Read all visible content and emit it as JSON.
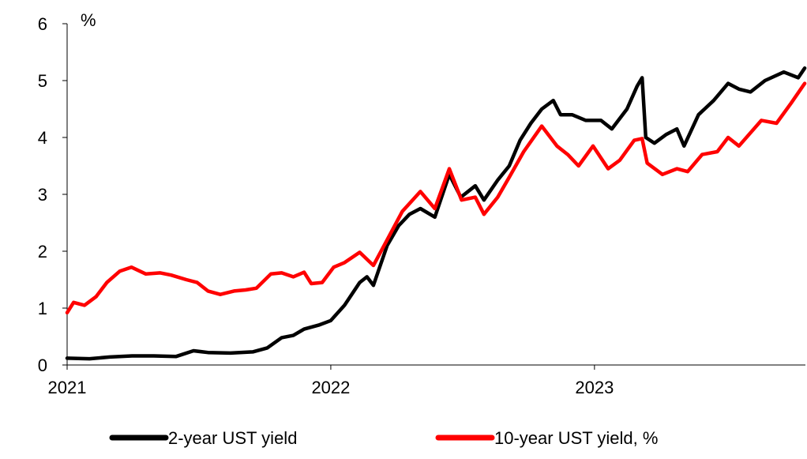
{
  "chart_data": {
    "type": "line",
    "title": "",
    "ylabel": "%",
    "xlabel": "",
    "ylim": [
      0,
      6
    ],
    "yticks": [
      "0",
      "1",
      "2",
      "3",
      "4",
      "5",
      "6"
    ],
    "xlim": [
      "2021-01-01",
      "2023-10-20"
    ],
    "xticks": [
      "2021",
      "2022",
      "2023"
    ],
    "grid": false,
    "legend": "bottom",
    "series": [
      {
        "name": "2-year UST yield",
        "color": "#000000",
        "points": [
          [
            "2021-01-01",
            0.12
          ],
          [
            "2021-02-01",
            0.11
          ],
          [
            "2021-03-01",
            0.14
          ],
          [
            "2021-04-01",
            0.16
          ],
          [
            "2021-05-01",
            0.16
          ],
          [
            "2021-06-01",
            0.15
          ],
          [
            "2021-06-25",
            0.25
          ],
          [
            "2021-07-15",
            0.22
          ],
          [
            "2021-08-15",
            0.21
          ],
          [
            "2021-09-15",
            0.23
          ],
          [
            "2021-10-05",
            0.3
          ],
          [
            "2021-10-25",
            0.48
          ],
          [
            "2021-11-10",
            0.52
          ],
          [
            "2021-11-25",
            0.63
          ],
          [
            "2021-12-15",
            0.7
          ],
          [
            "2022-01-01",
            0.78
          ],
          [
            "2022-01-20",
            1.05
          ],
          [
            "2022-02-10",
            1.45
          ],
          [
            "2022-02-20",
            1.55
          ],
          [
            "2022-03-01",
            1.4
          ],
          [
            "2022-03-20",
            2.1
          ],
          [
            "2022-04-05",
            2.45
          ],
          [
            "2022-04-20",
            2.65
          ],
          [
            "2022-05-05",
            2.75
          ],
          [
            "2022-05-25",
            2.6
          ],
          [
            "2022-06-14",
            3.35
          ],
          [
            "2022-06-30",
            2.95
          ],
          [
            "2022-07-20",
            3.15
          ],
          [
            "2022-08-01",
            2.9
          ],
          [
            "2022-08-20",
            3.25
          ],
          [
            "2022-09-05",
            3.5
          ],
          [
            "2022-09-20",
            3.95
          ],
          [
            "2022-10-05",
            4.25
          ],
          [
            "2022-10-20",
            4.5
          ],
          [
            "2022-11-05",
            4.65
          ],
          [
            "2022-11-15",
            4.4
          ],
          [
            "2022-12-01",
            4.4
          ],
          [
            "2022-12-20",
            4.3
          ],
          [
            "2023-01-10",
            4.3
          ],
          [
            "2023-01-25",
            4.15
          ],
          [
            "2023-02-15",
            4.5
          ],
          [
            "2023-03-01",
            4.9
          ],
          [
            "2023-03-08",
            5.05
          ],
          [
            "2023-03-13",
            4.0
          ],
          [
            "2023-03-25",
            3.9
          ],
          [
            "2023-04-10",
            4.05
          ],
          [
            "2023-04-25",
            4.15
          ],
          [
            "2023-05-05",
            3.85
          ],
          [
            "2023-05-25",
            4.4
          ],
          [
            "2023-06-15",
            4.65
          ],
          [
            "2023-07-05",
            4.95
          ],
          [
            "2023-07-20",
            4.85
          ],
          [
            "2023-08-05",
            4.8
          ],
          [
            "2023-08-25",
            5.0
          ],
          [
            "2023-09-20",
            5.15
          ],
          [
            "2023-10-10",
            5.05
          ],
          [
            "2023-10-19",
            5.22
          ]
        ]
      },
      {
        "name": "10-year UST yield, %",
        "color": "#ff0000",
        "points": [
          [
            "2021-01-01",
            0.92
          ],
          [
            "2021-01-10",
            1.1
          ],
          [
            "2021-01-25",
            1.05
          ],
          [
            "2021-02-10",
            1.2
          ],
          [
            "2021-02-25",
            1.45
          ],
          [
            "2021-03-15",
            1.65
          ],
          [
            "2021-03-31",
            1.72
          ],
          [
            "2021-04-20",
            1.6
          ],
          [
            "2021-05-10",
            1.62
          ],
          [
            "2021-05-25",
            1.58
          ],
          [
            "2021-06-15",
            1.5
          ],
          [
            "2021-06-30",
            1.45
          ],
          [
            "2021-07-15",
            1.3
          ],
          [
            "2021-08-01",
            1.24
          ],
          [
            "2021-08-20",
            1.3
          ],
          [
            "2021-09-05",
            1.32
          ],
          [
            "2021-09-20",
            1.35
          ],
          [
            "2021-10-10",
            1.6
          ],
          [
            "2021-10-25",
            1.62
          ],
          [
            "2021-11-10",
            1.55
          ],
          [
            "2021-11-25",
            1.63
          ],
          [
            "2021-12-05",
            1.43
          ],
          [
            "2021-12-20",
            1.45
          ],
          [
            "2022-01-05",
            1.72
          ],
          [
            "2022-01-20",
            1.8
          ],
          [
            "2022-02-10",
            1.98
          ],
          [
            "2022-03-01",
            1.75
          ],
          [
            "2022-03-20",
            2.2
          ],
          [
            "2022-04-10",
            2.7
          ],
          [
            "2022-05-05",
            3.05
          ],
          [
            "2022-05-25",
            2.75
          ],
          [
            "2022-06-14",
            3.45
          ],
          [
            "2022-07-01",
            2.9
          ],
          [
            "2022-07-20",
            2.95
          ],
          [
            "2022-08-01",
            2.65
          ],
          [
            "2022-08-20",
            2.95
          ],
          [
            "2022-09-05",
            3.3
          ],
          [
            "2022-09-25",
            3.75
          ],
          [
            "2022-10-20",
            4.2
          ],
          [
            "2022-11-10",
            3.85
          ],
          [
            "2022-11-25",
            3.7
          ],
          [
            "2022-12-10",
            3.5
          ],
          [
            "2022-12-30",
            3.85
          ],
          [
            "2023-01-20",
            3.45
          ],
          [
            "2023-02-05",
            3.6
          ],
          [
            "2023-02-25",
            3.95
          ],
          [
            "2023-03-08",
            3.98
          ],
          [
            "2023-03-15",
            3.55
          ],
          [
            "2023-04-05",
            3.35
          ],
          [
            "2023-04-25",
            3.45
          ],
          [
            "2023-05-10",
            3.4
          ],
          [
            "2023-05-30",
            3.7
          ],
          [
            "2023-06-20",
            3.75
          ],
          [
            "2023-07-05",
            4.0
          ],
          [
            "2023-07-20",
            3.85
          ],
          [
            "2023-08-20",
            4.3
          ],
          [
            "2023-09-10",
            4.25
          ],
          [
            "2023-09-30",
            4.6
          ],
          [
            "2023-10-19",
            4.95
          ]
        ]
      }
    ]
  }
}
